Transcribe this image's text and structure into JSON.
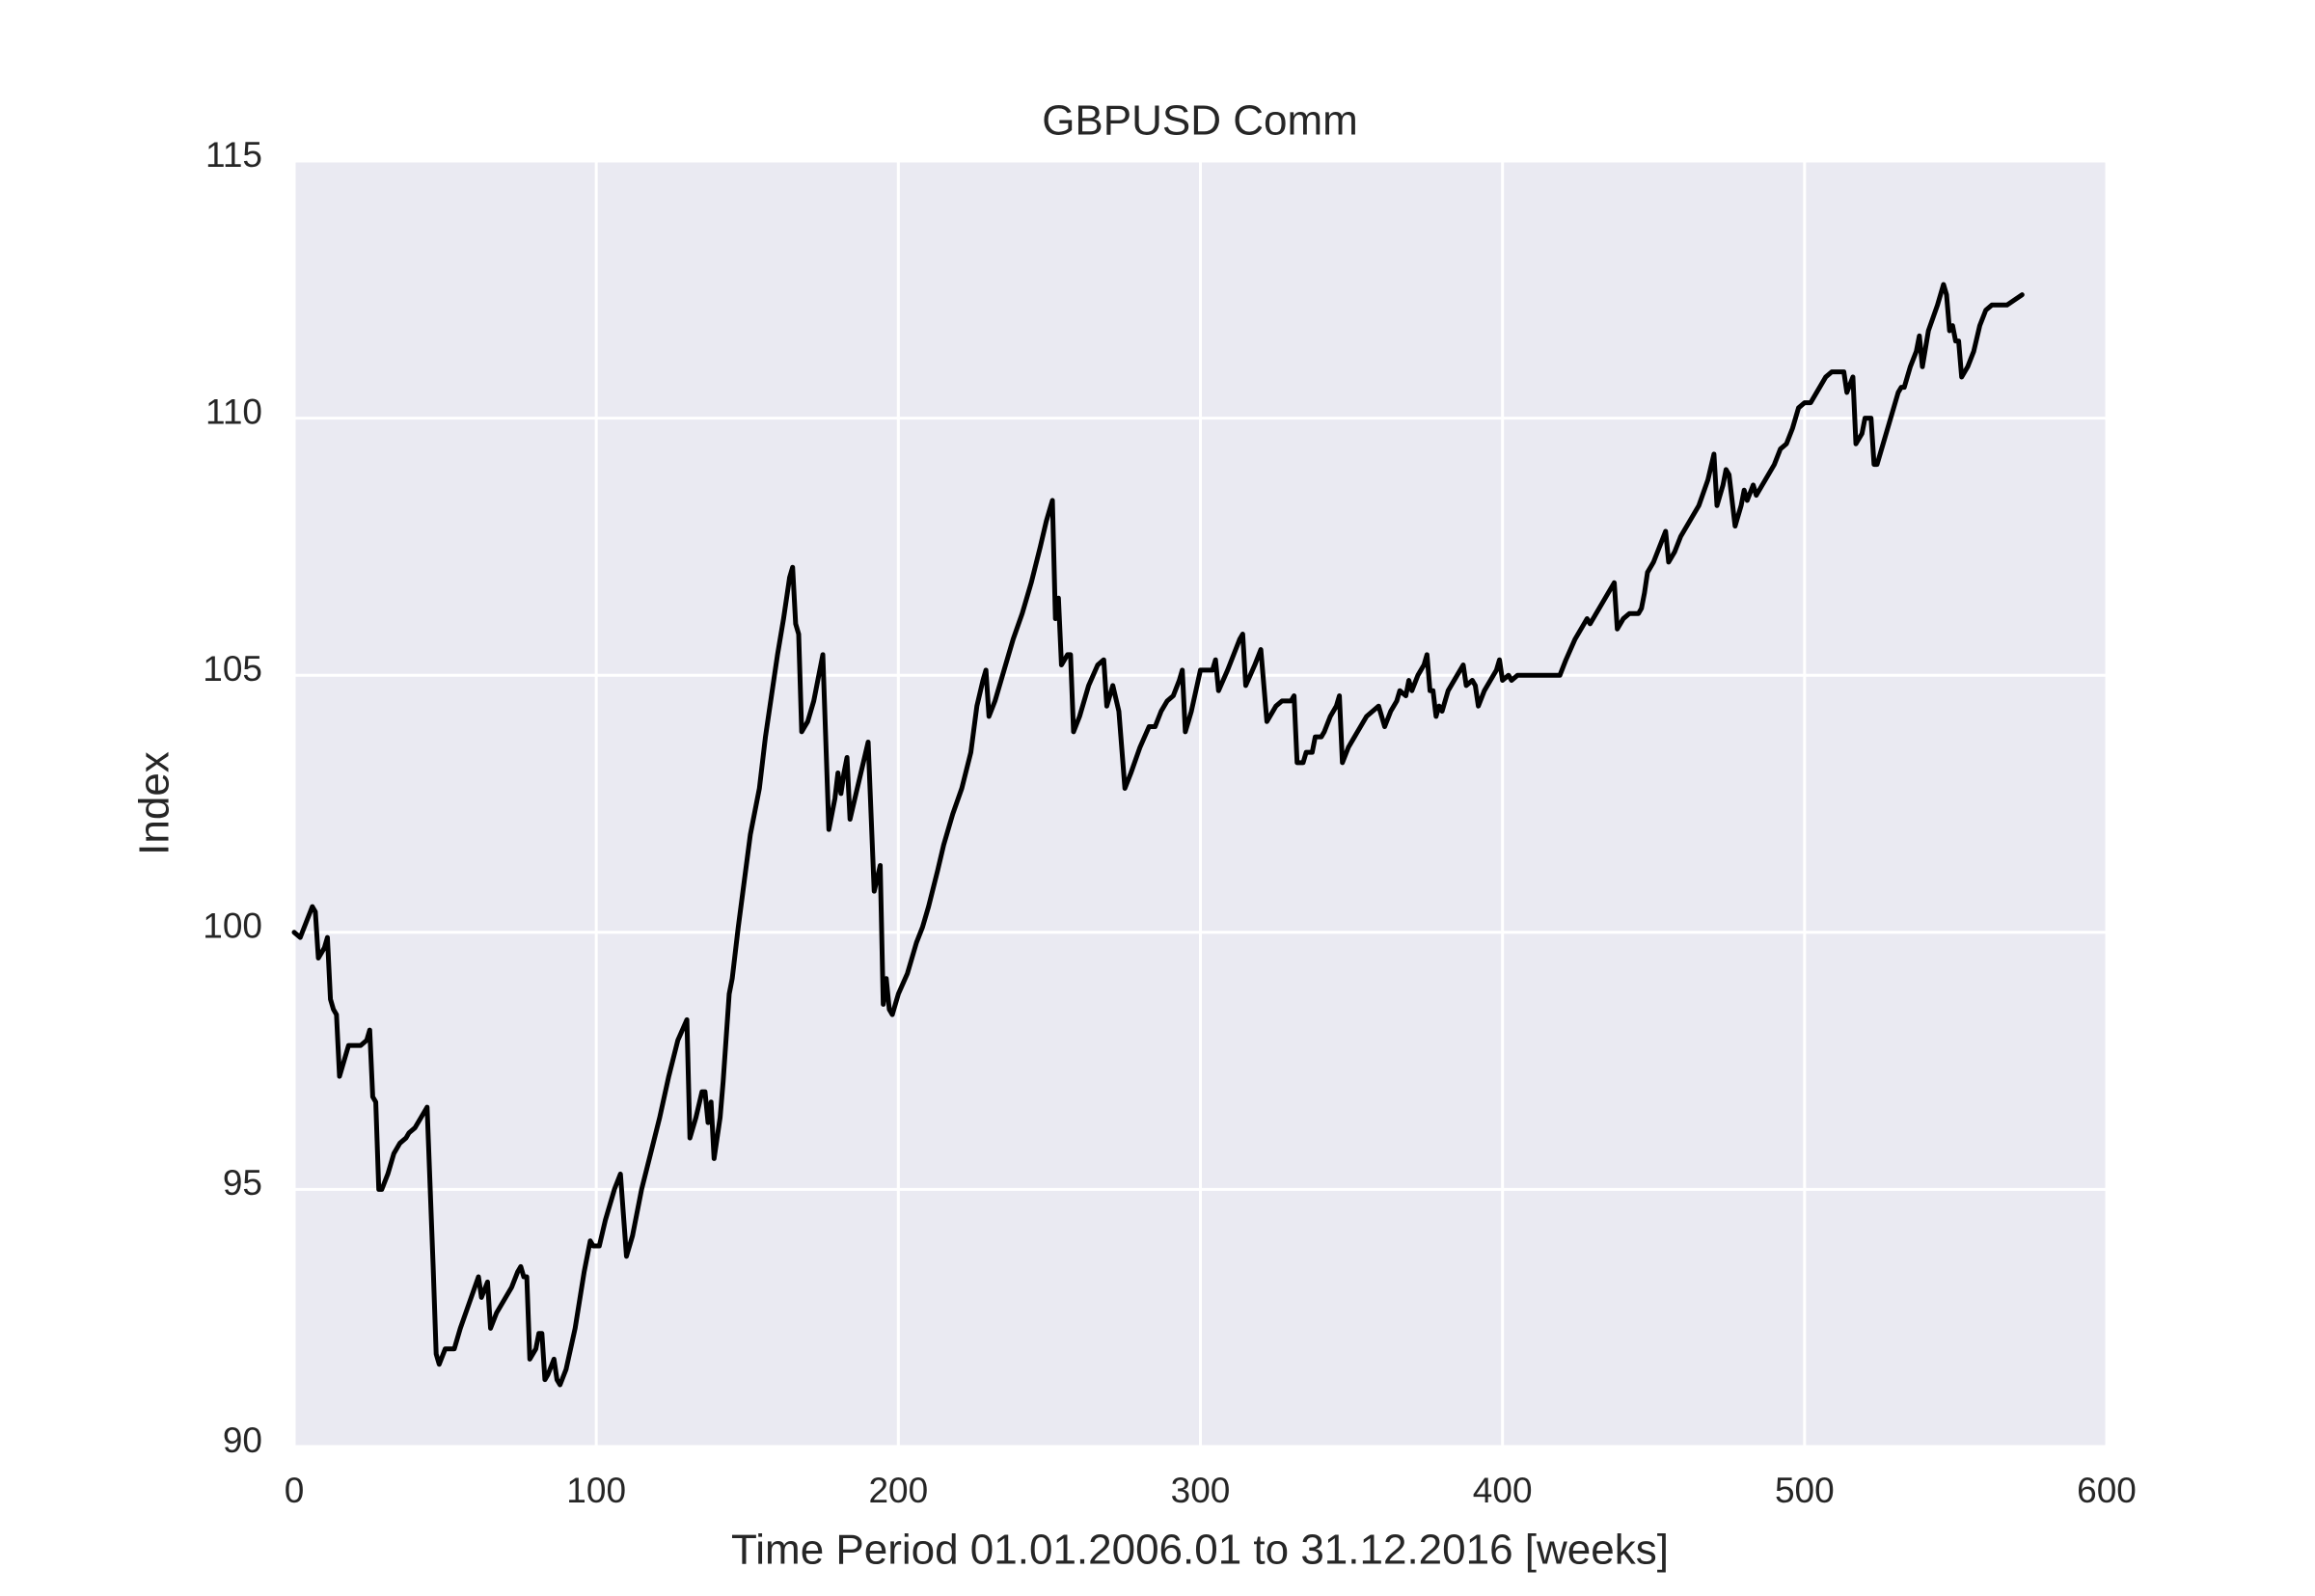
{
  "chart_data": {
    "type": "line",
    "title": "GBPUSD Comm",
    "x_label": "Time Period 01.01.2006.01 to 31.12.2016 [weeks]",
    "y_label": "Index",
    "color": "#000000",
    "grid": true,
    "xlim": [
      0,
      600
    ],
    "xticks": [
      0,
      100,
      200,
      300,
      400,
      500,
      600
    ],
    "ylim": [
      90,
      115
    ],
    "yticks": [
      90,
      95,
      100,
      105,
      110,
      115
    ],
    "x": [
      0,
      2,
      4,
      6,
      7,
      8,
      10,
      11,
      12,
      13,
      14,
      15,
      16,
      18,
      22,
      24,
      25,
      26,
      27,
      28,
      29,
      31,
      33,
      35,
      37,
      38,
      40,
      42,
      44,
      46,
      47,
      48,
      50,
      53,
      55,
      58,
      61,
      62,
      64,
      65,
      67,
      70,
      72,
      74,
      75,
      76,
      77,
      78,
      80,
      81,
      82,
      83,
      84,
      86,
      87,
      88,
      90,
      93,
      96,
      98,
      99,
      101,
      103,
      106,
      108,
      110,
      112,
      115,
      118,
      121,
      124,
      127,
      130,
      131,
      133,
      135,
      136,
      137,
      138,
      139,
      141,
      142,
      144,
      145,
      147,
      149,
      151,
      154,
      156,
      158,
      160,
      162,
      164,
      165,
      166,
      167,
      168,
      169,
      170,
      172,
      174,
      175,
      177,
      179,
      180,
      181,
      182,
      183,
      184,
      186,
      188,
      190,
      192,
      194,
      195,
      196,
      197,
      198,
      200,
      203,
      206,
      208,
      210,
      213,
      215,
      218,
      221,
      224,
      226,
      228,
      229,
      230,
      232,
      235,
      238,
      241,
      244,
      247,
      249,
      251,
      252,
      253,
      254,
      256,
      257,
      258,
      260,
      263,
      266,
      268,
      269,
      271,
      273,
      275,
      277,
      280,
      283,
      285,
      287,
      289,
      291,
      293,
      294,
      295,
      297,
      300,
      304,
      305,
      306,
      309,
      311,
      313,
      314,
      315,
      318,
      320,
      322,
      325,
      327,
      330,
      331,
      332,
      334,
      335,
      337,
      338,
      340,
      341,
      343,
      345,
      346,
      347,
      349,
      351,
      353,
      355,
      357,
      359,
      360,
      361,
      363,
      365,
      366,
      368,
      369,
      370,
      372,
      374,
      375,
      376,
      377,
      378,
      379,
      380,
      382,
      385,
      387,
      388,
      390,
      391,
      392,
      394,
      396,
      398,
      399,
      400,
      402,
      403,
      405,
      419,
      421,
      424,
      427,
      428,
      429,
      432,
      435,
      437,
      438,
      440,
      442,
      445,
      446,
      447,
      448,
      450,
      452,
      454,
      455,
      457,
      459,
      462,
      465,
      468,
      470,
      471,
      473,
      474,
      475,
      477,
      479,
      480,
      481,
      483,
      484,
      487,
      490,
      492,
      494,
      496,
      498,
      500,
      502,
      504,
      507,
      509,
      513,
      514,
      516,
      517,
      519,
      520,
      522,
      523,
      524,
      526,
      528,
      531,
      532,
      533,
      535,
      537,
      538,
      539,
      541,
      544,
      546,
      547,
      548,
      549,
      550,
      551,
      552,
      554,
      556,
      558,
      560,
      562,
      567,
      572
    ],
    "values": [
      100,
      99.9,
      100.2,
      100.5,
      100.4,
      99.5,
      99.7,
      99.9,
      98.7,
      98.5,
      98.4,
      97.2,
      97.4,
      97.8,
      97.8,
      97.9,
      98.1,
      96.8,
      96.7,
      95,
      95,
      95.3,
      95.7,
      95.9,
      96,
      96.1,
      96.2,
      96.4,
      96.6,
      93.5,
      91.8,
      91.6,
      91.9,
      91.9,
      92.3,
      92.8,
      93.3,
      92.9,
      93.2,
      92.3,
      92.6,
      92.9,
      93.1,
      93.4,
      93.5,
      93.3,
      93.3,
      91.7,
      91.9,
      92.2,
      92.2,
      91.3,
      91.4,
      91.7,
      91.3,
      91.2,
      91.5,
      92.3,
      93.4,
      94,
      93.9,
      93.9,
      94.4,
      95,
      95.3,
      93.7,
      94.1,
      95,
      95.7,
      96.4,
      97.2,
      97.9,
      98.3,
      96,
      96.4,
      96.9,
      96.9,
      96.3,
      96.7,
      95.6,
      96.4,
      97.1,
      98.8,
      99.1,
      100.1,
      101,
      101.9,
      102.8,
      103.8,
      104.6,
      105.4,
      106.1,
      106.9,
      107.1,
      106,
      105.8,
      103.9,
      104,
      104.1,
      104.5,
      105.1,
      105.4,
      102,
      102.6,
      103.1,
      102.7,
      103.1,
      103.4,
      102.2,
      102.7,
      103.2,
      103.7,
      100.8,
      101.3,
      98.6,
      99.1,
      98.5,
      98.4,
      98.8,
      99.2,
      99.8,
      100.1,
      100.5,
      101.2,
      101.7,
      102.3,
      102.8,
      103.5,
      104.4,
      104.9,
      105.1,
      104.2,
      104.5,
      105.1,
      105.7,
      106.2,
      106.8,
      107.5,
      108,
      108.4,
      106.1,
      106.5,
      105.2,
      105.4,
      105.4,
      103.9,
      104.2,
      104.8,
      105.2,
      105.3,
      104.4,
      104.8,
      104.3,
      102.8,
      103.1,
      103.6,
      104,
      104,
      104.3,
      104.5,
      104.6,
      104.9,
      105.1,
      103.9,
      104.3,
      105.1,
      105.1,
      105.3,
      104.7,
      105.1,
      105.4,
      105.7,
      105.8,
      104.8,
      105.2,
      105.5,
      104.1,
      104.4,
      104.5,
      104.5,
      104.6,
      103.3,
      103.3,
      103.5,
      103.5,
      103.8,
      103.8,
      103.9,
      104.2,
      104.4,
      104.6,
      103.3,
      103.6,
      103.8,
      104,
      104.2,
      104.3,
      104.4,
      104.2,
      104,
      104.3,
      104.5,
      104.7,
      104.6,
      104.9,
      104.7,
      105,
      105.2,
      105.4,
      104.7,
      104.7,
      104.2,
      104.4,
      104.3,
      104.7,
      105,
      105.2,
      104.8,
      104.9,
      104.8,
      104.4,
      104.7,
      104.9,
      105.1,
      105.3,
      104.9,
      105,
      104.9,
      105,
      105,
      105.3,
      105.7,
      106,
      106.1,
      106,
      106.3,
      106.6,
      106.8,
      105.9,
      106.1,
      106.2,
      106.2,
      106.3,
      106.6,
      107,
      107.2,
      107.5,
      107.8,
      107.2,
      107.4,
      107.7,
      108,
      108.3,
      108.8,
      109.3,
      108.3,
      108.7,
      109,
      108.9,
      107.9,
      108.3,
      108.6,
      108.4,
      108.7,
      108.5,
      108.8,
      109.1,
      109.4,
      109.5,
      109.8,
      110.2,
      110.3,
      110.3,
      110.5,
      110.8,
      110.9,
      110.9,
      110.5,
      110.8,
      109.5,
      109.7,
      110,
      110,
      109.1,
      109.1,
      109.5,
      109.9,
      110.5,
      110.6,
      110.6,
      111,
      111.3,
      111.6,
      111,
      111.7,
      112.2,
      112.6,
      112.4,
      111.7,
      111.8,
      111.5,
      111.5,
      110.8,
      111,
      111.3,
      111.8,
      112.1,
      112.2,
      112.2,
      112.4
    ]
  }
}
